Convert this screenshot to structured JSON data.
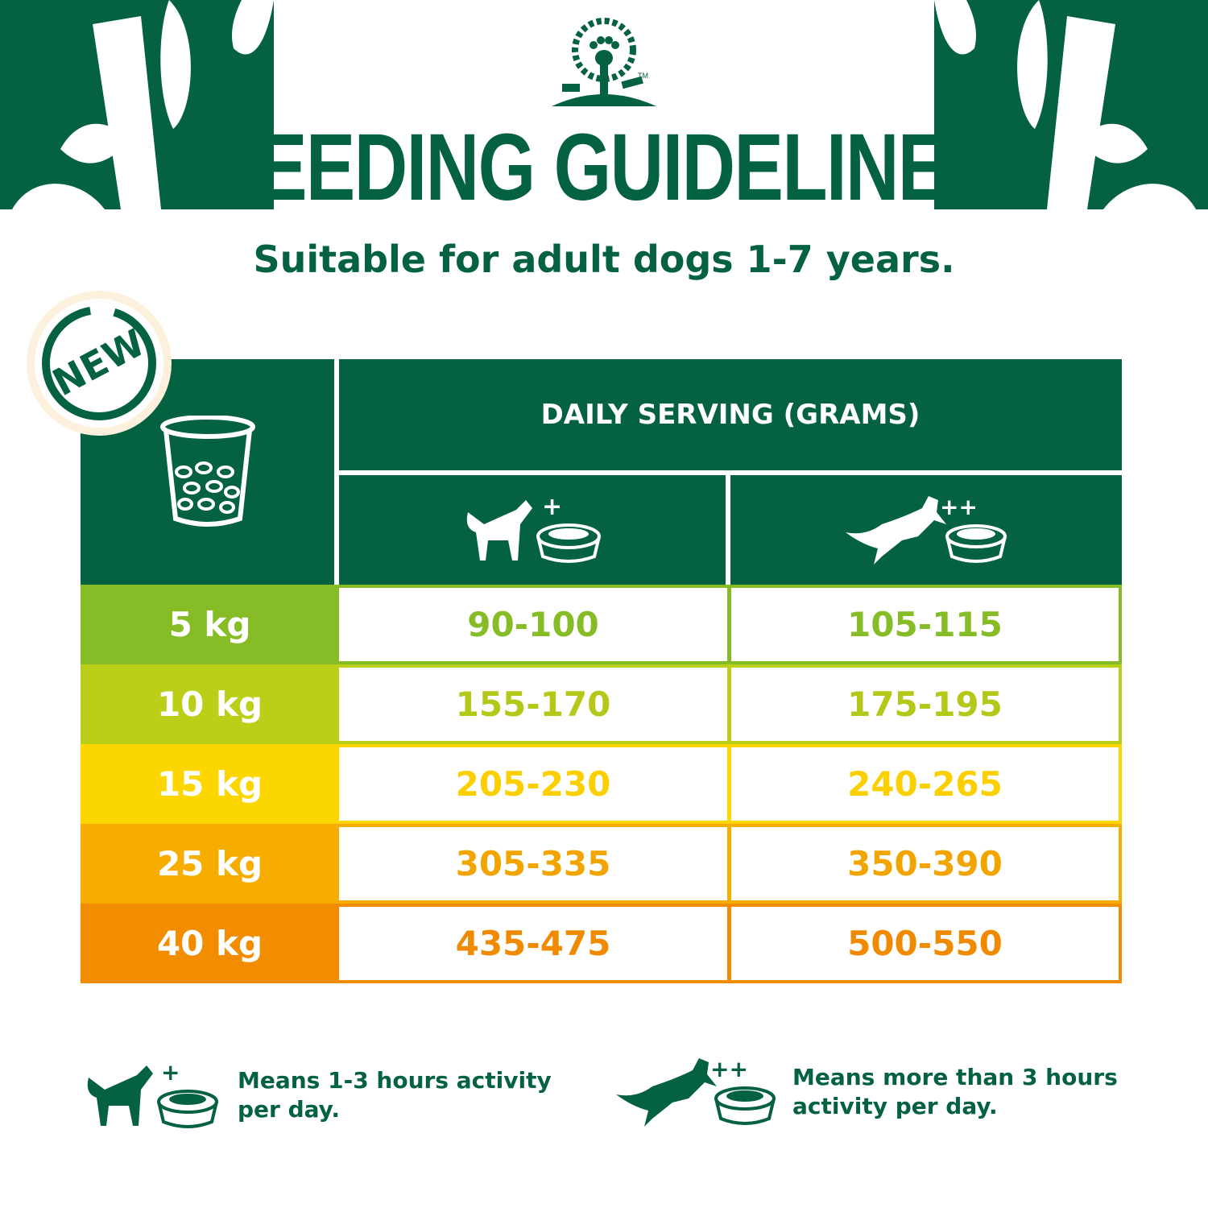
{
  "brand": {
    "logo": "tree-paw-logo",
    "trademark": "TM"
  },
  "header": {
    "title": "FEEDING GUIDELINES",
    "subtitle": "Suitable for adult dogs 1-7 years."
  },
  "badge": {
    "label": "NEW"
  },
  "colors": {
    "brand_green": "#056241",
    "row_5kg": "#86bc25",
    "row_10kg": "#bccf18",
    "row_15kg": "#fdd600",
    "row_25kg": "#f6ad00",
    "row_40kg": "#f28c00"
  },
  "table": {
    "header": "DAILY SERVING (GRAMS)",
    "corner_icon": "food-cup-icon",
    "columns": [
      {
        "icon": "dog-standing-bowl-icon",
        "marker": "+"
      },
      {
        "icon": "dog-jumping-bowl-icon",
        "marker": "++"
      }
    ],
    "rows": [
      {
        "weight": "5 kg",
        "moderate": "90-100",
        "active": "105-115"
      },
      {
        "weight": "10 kg",
        "moderate": "155-170",
        "active": "175-195"
      },
      {
        "weight": "15 kg",
        "moderate": "205-230",
        "active": "240-265"
      },
      {
        "weight": "25 kg",
        "moderate": "305-335",
        "active": "350-390"
      },
      {
        "weight": "40 kg",
        "moderate": "435-475",
        "active": "500-550"
      }
    ]
  },
  "legend": [
    {
      "marker": "+",
      "line1": "Means 1-3 hours activity",
      "line2": "per day."
    },
    {
      "marker": "++",
      "line1": "Means more than 3 hours",
      "line2": "activity per day."
    }
  ]
}
